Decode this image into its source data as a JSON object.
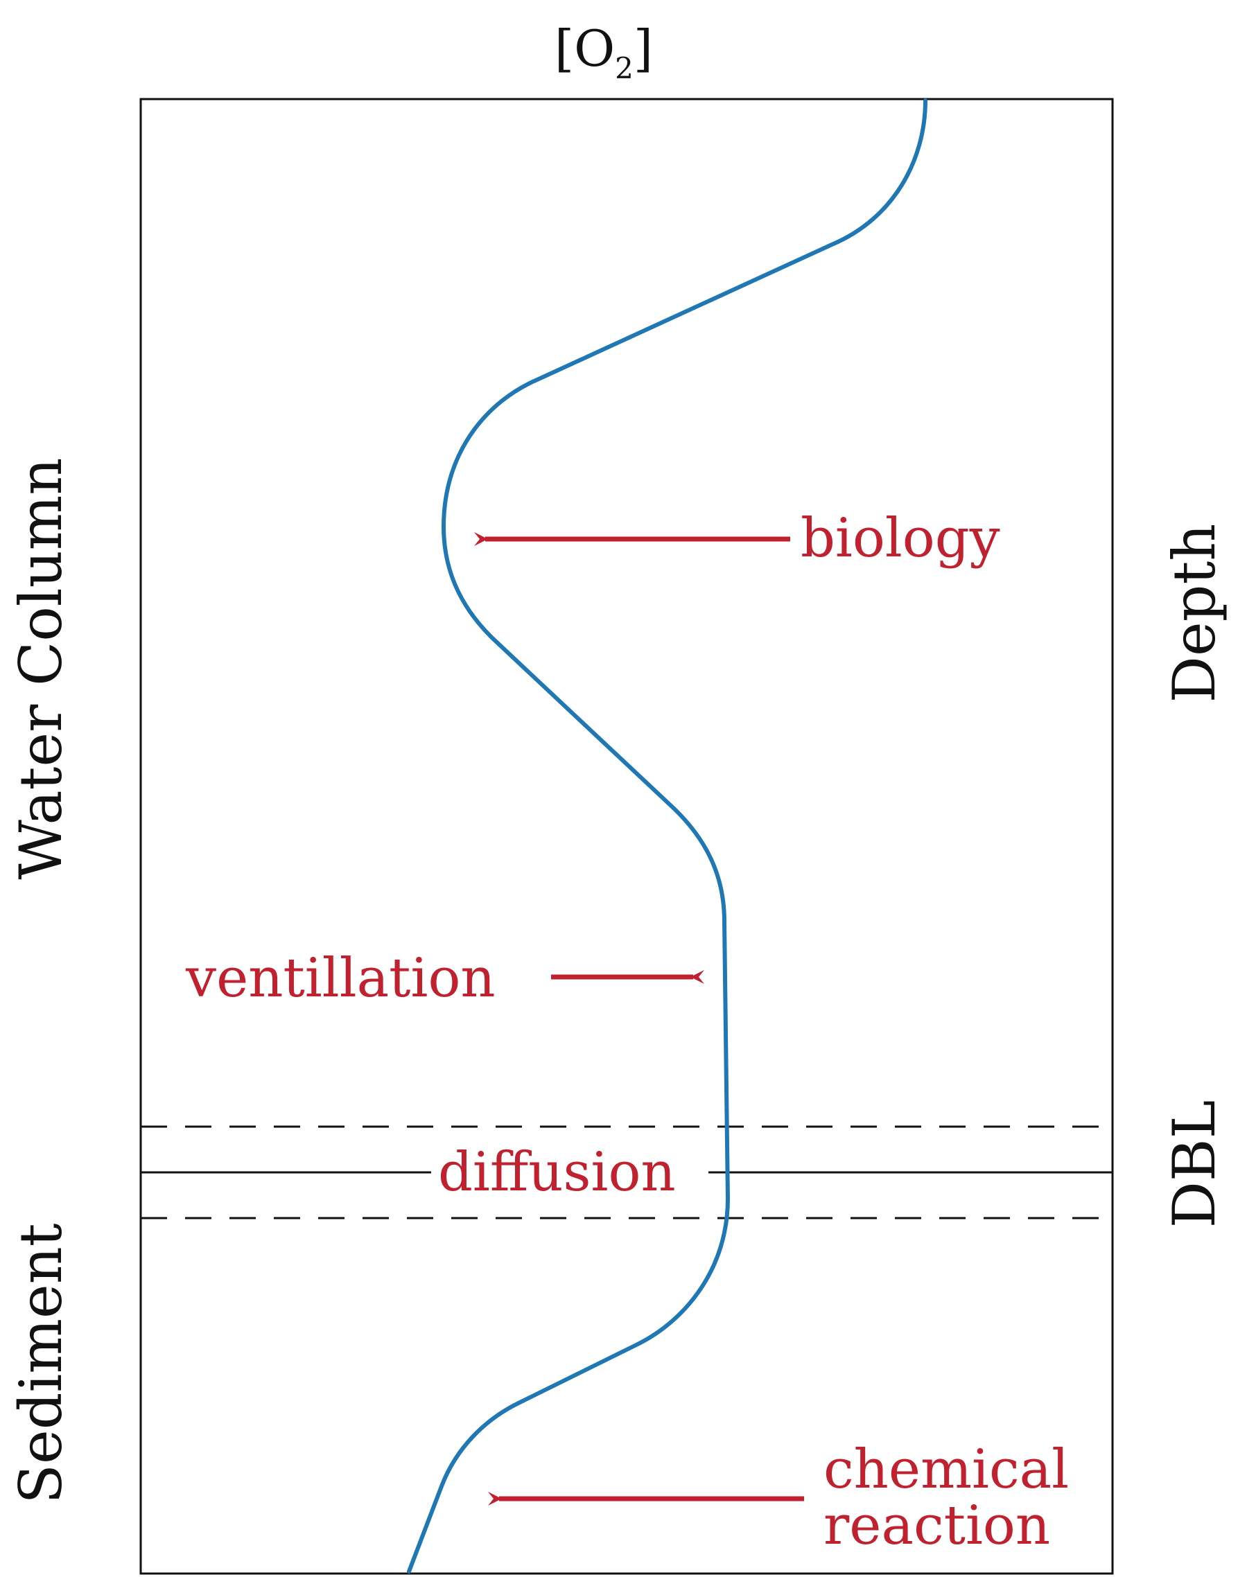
{
  "axis": {
    "top_label": "[O",
    "top_label_subscript": "2",
    "top_label_close": "]",
    "right_label_depth": "Depth",
    "right_label_dbl": "DBL"
  },
  "zones": {
    "water_column": "Water Column",
    "sediment": "Sediment"
  },
  "annotations": {
    "biology": "biology",
    "ventillation": "ventillation",
    "diffusion": "diffusion",
    "chemical_line1": "chemical",
    "chemical_line2": "reaction"
  },
  "colors": {
    "profile": "#1f77b4",
    "annotation": "#c0212f",
    "frame": "#111111"
  }
}
